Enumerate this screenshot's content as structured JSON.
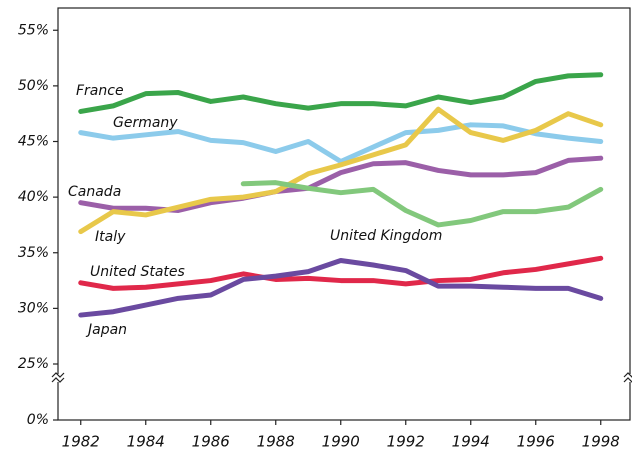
{
  "chart_data": {
    "type": "line",
    "x": [
      1982,
      1983,
      1984,
      1985,
      1986,
      1987,
      1988,
      1989,
      1990,
      1991,
      1992,
      1993,
      1994,
      1995,
      1996,
      1997,
      1998
    ],
    "xlim": [
      1981.3,
      1998.9
    ],
    "xticks": [
      1982,
      1984,
      1986,
      1988,
      1990,
      1992,
      1994,
      1996,
      1998
    ],
    "ylim": [
      0,
      57
    ],
    "axis_break": [
      0,
      25
    ],
    "yticks": [
      {
        "value": 0,
        "label": "0%"
      },
      {
        "value": 25,
        "label": "25%"
      },
      {
        "value": 30,
        "label": "30%"
      },
      {
        "value": 35,
        "label": "35%"
      },
      {
        "value": 40,
        "label": "40%"
      },
      {
        "value": 45,
        "label": "45%"
      },
      {
        "value": 50,
        "label": "50%"
      },
      {
        "value": 55,
        "label": "55%"
      }
    ],
    "series": [
      {
        "name": "France",
        "color": "#3aa54a",
        "values": [
          47.7,
          48.2,
          49.3,
          49.4,
          48.6,
          49.0,
          48.4,
          48.0,
          48.4,
          48.4,
          48.2,
          49.0,
          48.5,
          49.0,
          50.4,
          50.9,
          51.0
        ]
      },
      {
        "name": "Germany",
        "color": "#8ccbeb",
        "values": [
          45.8,
          45.3,
          45.6,
          45.9,
          45.1,
          44.9,
          44.1,
          45.0,
          43.2,
          44.5,
          45.8,
          46.0,
          46.5,
          46.4,
          45.7,
          45.3,
          45.0
        ]
      },
      {
        "name": "Canada",
        "color": "#9b5fa8",
        "values": [
          39.5,
          39.0,
          39.0,
          38.8,
          39.5,
          39.9,
          40.5,
          40.8,
          42.2,
          43.0,
          43.1,
          42.4,
          42.0,
          42.0,
          42.2,
          43.3,
          43.5
        ]
      },
      {
        "name": "Italy",
        "color": "#e8c84a",
        "values": [
          36.9,
          38.7,
          38.4,
          39.1,
          39.8,
          40.0,
          40.5,
          42.1,
          42.9,
          43.8,
          44.7,
          47.9,
          45.8,
          45.1,
          46.0,
          47.5,
          46.5
        ]
      },
      {
        "name": "United Kingdom",
        "color": "#82c87c",
        "values": [
          null,
          null,
          null,
          null,
          null,
          41.2,
          41.3,
          40.8,
          40.4,
          40.7,
          38.8,
          37.5,
          37.9,
          38.7,
          38.7,
          39.1,
          40.7
        ]
      },
      {
        "name": "United States",
        "color": "#e0284a",
        "values": [
          32.3,
          31.8,
          31.9,
          32.2,
          32.5,
          33.1,
          32.6,
          32.7,
          32.5,
          32.5,
          32.2,
          32.5,
          32.6,
          33.2,
          33.5,
          34.0,
          34.5
        ]
      },
      {
        "name": "Japan",
        "color": "#6a4aa0",
        "values": [
          29.4,
          29.7,
          30.3,
          30.9,
          31.2,
          32.6,
          32.9,
          33.3,
          34.3,
          33.9,
          33.4,
          32.0,
          32.0,
          31.9,
          31.8,
          31.8,
          30.9
        ]
      }
    ]
  }
}
